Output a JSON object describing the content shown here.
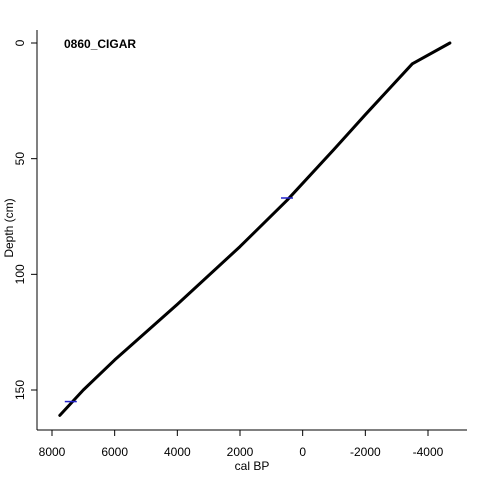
{
  "chart_data": {
    "type": "line",
    "title": "0860_CIGAR",
    "xlabel": "cal BP",
    "ylabel": "Depth (cm)",
    "x_reversed": true,
    "y_reversed": true,
    "xlim": [
      8000,
      -4700
    ],
    "ylim": [
      0,
      162
    ],
    "x_ticks": [
      8000,
      6000,
      4000,
      2000,
      0,
      -2000,
      -4000
    ],
    "x_tick_labels": [
      "8000",
      "6000",
      "4000",
      "2000",
      "0",
      "-2000",
      "-4000"
    ],
    "y_ticks": [
      0,
      50,
      100,
      150
    ],
    "y_tick_labels": [
      "0",
      "50",
      "100",
      "150"
    ],
    "grid": false,
    "legend": "none",
    "series": [
      {
        "color": "#000000",
        "x": [
          -4700,
          -3500,
          -2000,
          -1000,
          500,
          2000,
          4000,
          6000,
          7000,
          7750
        ],
        "y": [
          0,
          9,
          31,
          46,
          68,
          88,
          113,
          137,
          150,
          161
        ]
      }
    ],
    "dates": [
      {
        "depth": 67,
        "age": 500,
        "color": "#2222cc"
      },
      {
        "depth": 155,
        "age": 7400,
        "color": "#2222cc"
      }
    ]
  }
}
